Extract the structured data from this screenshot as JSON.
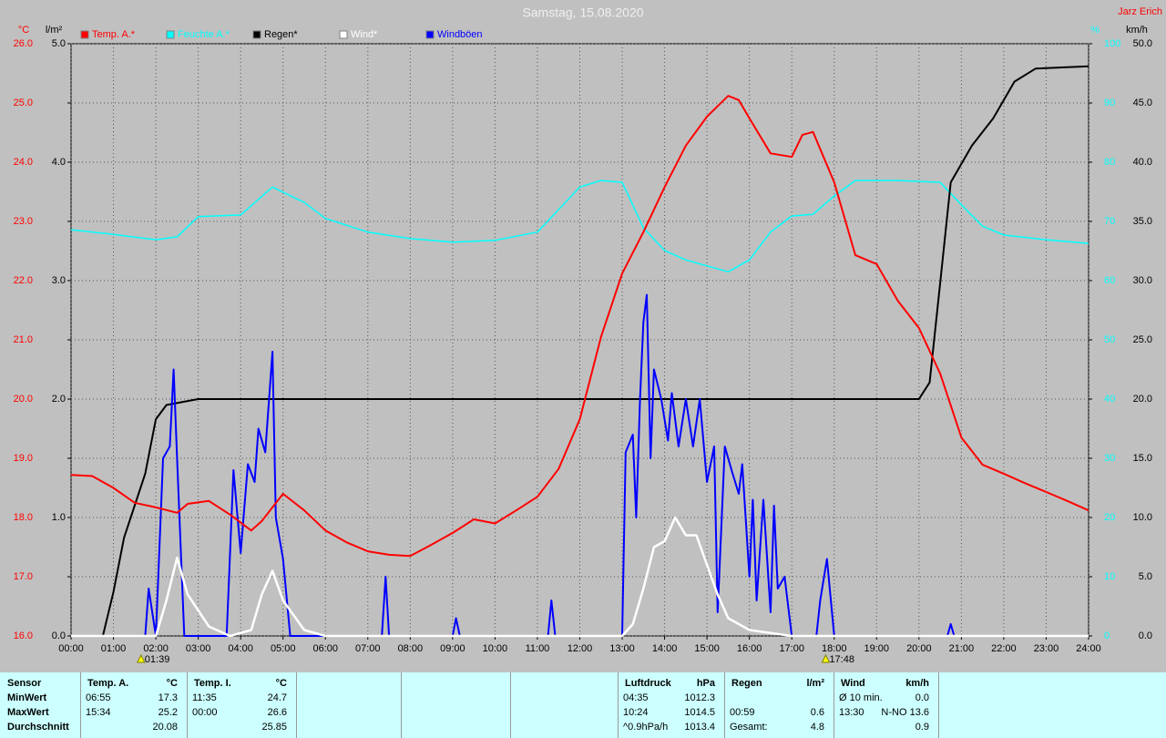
{
  "chart_data": {
    "type": "line",
    "title": "Samstag, 15.08.2020",
    "author": "Jarz Erich",
    "y_unit": "°C",
    "y2_unit": "l/m²",
    "y3_unit": "%",
    "y4_unit": "km/h",
    "xlim": [
      0,
      24
    ],
    "xticks": [
      {
        "value": 0,
        "label": "00:00"
      },
      {
        "value": 1,
        "label": "01:00"
      },
      {
        "value": 2,
        "label": "02:00"
      },
      {
        "value": 3,
        "label": "03:00"
      },
      {
        "value": 4,
        "label": "04:00"
      },
      {
        "value": 5,
        "label": "05:00"
      },
      {
        "value": 6,
        "label": "06:00"
      },
      {
        "value": 7,
        "label": "07:00"
      },
      {
        "value": 8,
        "label": "08:00"
      },
      {
        "value": 9,
        "label": "09:00"
      },
      {
        "value": 10,
        "label": "10:00"
      },
      {
        "value": 11,
        "label": "11:00"
      },
      {
        "value": 12,
        "label": "12:00"
      },
      {
        "value": 13,
        "label": "13:00"
      },
      {
        "value": 14,
        "label": "14:00"
      },
      {
        "value": 15,
        "label": "15:00"
      },
      {
        "value": 16,
        "label": "16:00"
      },
      {
        "value": 17,
        "label": "17:00"
      },
      {
        "value": 18,
        "label": "18:00"
      },
      {
        "value": 19,
        "label": "19:00"
      },
      {
        "value": 20,
        "label": "20:00"
      },
      {
        "value": 21,
        "label": "21:00"
      },
      {
        "value": 22,
        "label": "22:00"
      },
      {
        "value": 23,
        "label": "23:00"
      },
      {
        "value": 24,
        "label": "24:00"
      }
    ],
    "ylim": [
      16,
      26
    ],
    "yticks": [
      {
        "value": 16,
        "label": "16.0"
      },
      {
        "value": 17,
        "label": "17.0"
      },
      {
        "value": 18,
        "label": "18.0"
      },
      {
        "value": 19,
        "label": "19.0"
      },
      {
        "value": 20,
        "label": "20.0"
      },
      {
        "value": 21,
        "label": "21.0"
      },
      {
        "value": 22,
        "label": "22.0"
      },
      {
        "value": 23,
        "label": "23.0"
      },
      {
        "value": 24,
        "label": "24.0"
      },
      {
        "value": 25,
        "label": "25.0"
      },
      {
        "value": 26,
        "label": "26.0"
      }
    ],
    "y2lim": [
      0,
      5
    ],
    "y2ticks": [
      {
        "value": 0,
        "label": "0.0"
      },
      {
        "value": 1,
        "label": "1.0"
      },
      {
        "value": 2,
        "label": "2.0"
      },
      {
        "value": 3,
        "label": "3.0"
      },
      {
        "value": 4,
        "label": "4.0"
      },
      {
        "value": 5,
        "label": "5.0"
      }
    ],
    "y3lim": [
      0,
      100
    ],
    "y3ticks": [
      0,
      10,
      20,
      30,
      40,
      50,
      60,
      70,
      80,
      90,
      100
    ],
    "y4lim": [
      0,
      50
    ],
    "y4ticks": [
      {
        "value": 0,
        "label": "0.0"
      },
      {
        "value": 5,
        "label": "5.0"
      },
      {
        "value": 10,
        "label": "10.0"
      },
      {
        "value": 15,
        "label": "15.0"
      },
      {
        "value": 20,
        "label": "20.0"
      },
      {
        "value": 25,
        "label": "25.0"
      },
      {
        "value": 30,
        "label": "30.0"
      },
      {
        "value": 35,
        "label": "35.0"
      },
      {
        "value": 40,
        "label": "40.0"
      },
      {
        "value": 45,
        "label": "45.0"
      },
      {
        "value": 50,
        "label": "50.0"
      }
    ],
    "grid": true,
    "sun_events": [
      {
        "label": "01:39",
        "x": 1.65
      },
      {
        "label": "17:48",
        "x": 17.8
      }
    ],
    "series": [
      {
        "name": "Temp. A.*",
        "color": "#ff0000",
        "axis": "y",
        "x": [
          0,
          0.5,
          1,
          1.5,
          2,
          2.5,
          2.75,
          3.25,
          3.75,
          4.25,
          4.5,
          5,
          5.5,
          6,
          6.5,
          7,
          7.5,
          8,
          8.5,
          9,
          9.5,
          10,
          10.5,
          11,
          11.5,
          12,
          12.5,
          13,
          13.5,
          14,
          14.5,
          15,
          15.5,
          15.75,
          16,
          16.5,
          17,
          17.25,
          17.5,
          18,
          18.5,
          19,
          19.5,
          20,
          20.5,
          21,
          21.5,
          22,
          22.5,
          23,
          23.5,
          24
        ],
        "values": [
          18.72,
          18.7,
          18.5,
          18.25,
          18.17,
          18.08,
          18.23,
          18.28,
          18.05,
          17.78,
          17.94,
          18.4,
          18.12,
          17.78,
          17.58,
          17.43,
          17.37,
          17.35,
          17.54,
          17.74,
          17.97,
          17.9,
          18.12,
          18.35,
          18.82,
          19.66,
          21.05,
          22.12,
          22.82,
          23.58,
          24.28,
          24.77,
          25.12,
          25.05,
          24.74,
          24.15,
          24.09,
          24.46,
          24.51,
          23.66,
          22.43,
          22.28,
          21.66,
          21.2,
          20.43,
          19.35,
          18.89,
          18.74,
          18.58,
          18.43,
          18.28,
          18.12
        ]
      },
      {
        "name": "Feuchte A.*",
        "color": "#00ffff",
        "axis": "y3",
        "x": [
          0,
          1,
          2,
          2.5,
          3,
          4,
          4.75,
          5.5,
          6,
          7,
          8,
          9,
          10,
          11,
          11.5,
          12,
          12.5,
          13,
          13.5,
          14,
          14.5,
          15,
          15.5,
          16,
          16.5,
          17,
          17.5,
          18,
          18.5,
          19.5,
          20.5,
          21,
          21.5,
          22,
          23,
          24
        ],
        "values": [
          68.6,
          67.8,
          66.9,
          67.4,
          70.8,
          71.1,
          75.8,
          73.2,
          70.5,
          68.2,
          67.1,
          66.5,
          66.8,
          68.2,
          72,
          75.8,
          76.9,
          76.6,
          68.9,
          65.1,
          63.5,
          62.5,
          61.5,
          63.5,
          68.2,
          70.9,
          71.2,
          74.3,
          76.9,
          76.9,
          76.6,
          72.8,
          69.2,
          67.7,
          66.9,
          66.3
        ]
      },
      {
        "name": "Regen*",
        "color": "#000000",
        "axis": "y2",
        "x": [
          0,
          0.75,
          1,
          1.25,
          1.5,
          1.75,
          2,
          2.25,
          3,
          20,
          20.25,
          20.5,
          20.75,
          21.25,
          21.75,
          22.25,
          22.75,
          24
        ],
        "values": [
          0,
          0,
          0.37,
          0.83,
          1.1,
          1.37,
          1.83,
          1.95,
          2,
          2,
          2.14,
          2.98,
          3.83,
          4.14,
          4.37,
          4.68,
          4.79,
          4.81
        ]
      },
      {
        "name": "Wind*",
        "color": "#ffffff",
        "axis": "y4",
        "x": [
          0,
          2,
          2.25,
          2.5,
          2.75,
          3.25,
          3.75,
          4.25,
          4.5,
          4.75,
          5,
          5.5,
          6,
          13,
          13.25,
          13.5,
          13.75,
          14,
          14.25,
          14.5,
          14.75,
          15,
          15.25,
          15.5,
          16,
          17,
          24
        ],
        "values": [
          0,
          0,
          3,
          6.6,
          3.5,
          0.8,
          0,
          0.5,
          3.5,
          5.5,
          3,
          0.5,
          0,
          0,
          1,
          4,
          7.5,
          8,
          10,
          8.5,
          8.5,
          6,
          3.5,
          1.5,
          0.5,
          0,
          0
        ]
      },
      {
        "name": "Windböen",
        "color": "#0000ff",
        "axis": "y4",
        "x": [
          0,
          1.75,
          1.83,
          2,
          2.17,
          2.33,
          2.42,
          2.5,
          2.67,
          3.67,
          3.83,
          4,
          4.17,
          4.33,
          4.42,
          4.58,
          4.75,
          4.83,
          5,
          5.17,
          7.33,
          7.42,
          7.5,
          9,
          9.08,
          9.17,
          11.25,
          11.33,
          11.42,
          13,
          13.08,
          13.25,
          13.33,
          13.42,
          13.5,
          13.58,
          13.67,
          13.75,
          13.92,
          14.08,
          14.17,
          14.33,
          14.5,
          14.67,
          14.83,
          15,
          15.17,
          15.25,
          15.42,
          15.58,
          15.75,
          15.83,
          16,
          16.08,
          16.17,
          16.33,
          16.5,
          16.58,
          16.67,
          16.83,
          17,
          17.58,
          17.67,
          17.83,
          18,
          20.67,
          20.75,
          20.83,
          24
        ],
        "values": [
          0,
          0,
          4,
          0,
          15,
          16,
          22.5,
          15,
          0,
          0,
          14,
          7,
          14.5,
          13,
          17.5,
          15.5,
          24,
          10,
          6.5,
          0,
          0,
          5,
          0,
          0,
          1.5,
          0,
          0,
          3,
          0,
          0,
          15.5,
          17,
          10,
          20,
          26.5,
          28.8,
          15,
          22.5,
          20,
          16.5,
          20.5,
          16,
          20,
          16,
          20,
          13,
          16,
          2,
          16,
          14,
          12,
          14.5,
          5,
          11.5,
          3,
          11.5,
          2,
          11,
          4,
          5,
          0,
          0,
          3,
          6.5,
          0,
          0,
          1,
          0,
          0
        ]
      }
    ]
  },
  "stats": {
    "columns": [
      {
        "title": "Sensor",
        "rows": [
          "MinWert",
          "MaxWert",
          "Durchschnitt"
        ]
      },
      {
        "title": "Temp. A.",
        "unit": "°C",
        "rows": [
          [
            "06:55",
            "17.3"
          ],
          [
            "15:34",
            "25.2"
          ],
          [
            null,
            "20.08"
          ]
        ]
      },
      {
        "title": "Temp. I.",
        "unit": "°C",
        "rows": [
          [
            "11:35",
            "24.7"
          ],
          [
            "00:00",
            "26.6"
          ],
          [
            null,
            "25.85"
          ]
        ]
      },
      {
        "title": "Luftdruck",
        "unit": "hPa",
        "rows": [
          [
            "04:35",
            "1012.3"
          ],
          [
            "10:24",
            "1014.5"
          ],
          [
            "^0.9hPa/h",
            "1013.4"
          ]
        ]
      },
      {
        "title": "Regen",
        "unit": "l/m²",
        "rows": [
          [
            null,
            null
          ],
          [
            "00:59",
            "0.6"
          ],
          [
            "Gesamt:",
            "4.8"
          ]
        ]
      },
      {
        "title": "Wind",
        "unit": "km/h",
        "rows": [
          [
            "Ø 10 min.",
            "0.0"
          ],
          [
            "13:30",
            "N-NO 13.6"
          ],
          [
            null,
            "0.9"
          ]
        ]
      }
    ]
  }
}
